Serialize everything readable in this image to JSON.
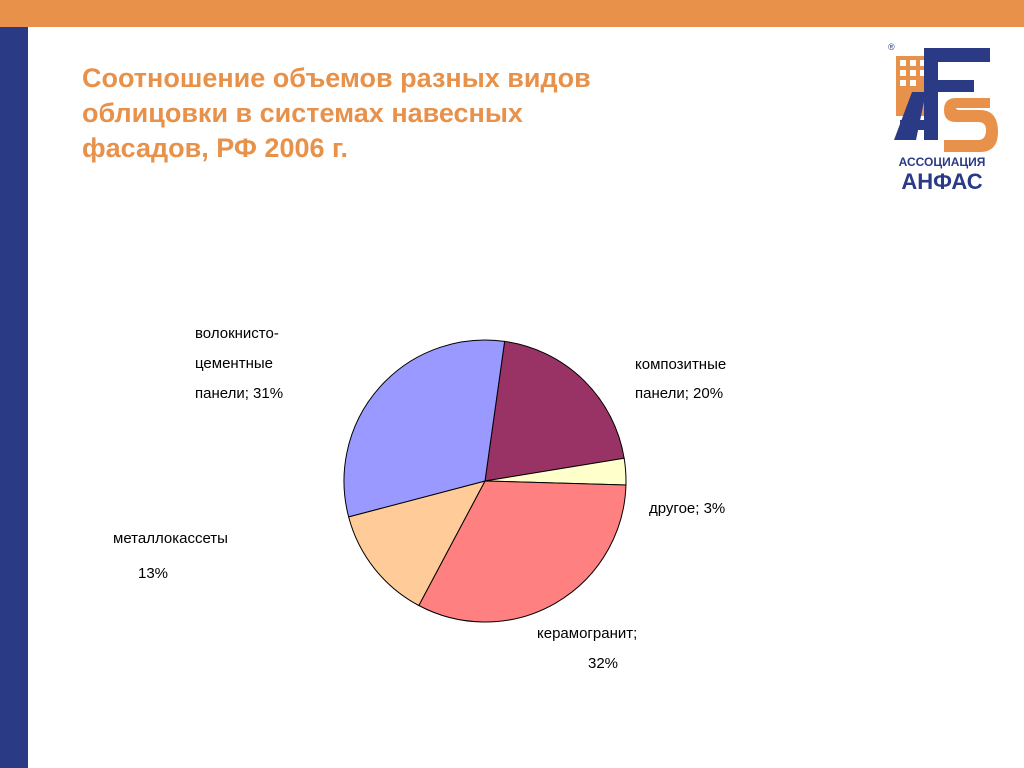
{
  "slide": {
    "title_lines": [
      "Соотношение объемов разных видов",
      "облицовки в системах навесных",
      "фасадов, РФ 2006 г."
    ],
    "logo": {
      "line1": "АССОЦИАЦИЯ",
      "line2": "АНФАС",
      "registered": "®"
    },
    "colors": {
      "accent_orange": "#E8914A",
      "accent_navy": "#2A3A85"
    }
  },
  "chart_data": {
    "type": "pie",
    "title": "Соотношение объемов разных видов облицовки в системах навесных фасадов, РФ 2006 г.",
    "slices": [
      {
        "name": "композитные панели",
        "value": 20,
        "color": "#993366",
        "label_lines": [
          "композитные",
          "панели; 20%"
        ]
      },
      {
        "name": "другое",
        "value": 3,
        "color": "#FFFFCC",
        "label_lines": [
          "другое; 3%"
        ]
      },
      {
        "name": "керамогранит",
        "value": 32,
        "color": "#FF8080",
        "label_lines": [
          "керамогранит;",
          "32%"
        ]
      },
      {
        "name": "металлокассеты",
        "value": 13,
        "color": "#FFCC99",
        "label_lines": [
          "металлокассеты",
          "13%"
        ]
      },
      {
        "name": "волокнисто-цементные панели",
        "value": 31,
        "color": "#9999FF",
        "label_lines": [
          "волокнисто-",
          "цементные",
          "панели; 31%"
        ]
      }
    ],
    "start_angle_deg": 8,
    "direction": "clockwise"
  }
}
